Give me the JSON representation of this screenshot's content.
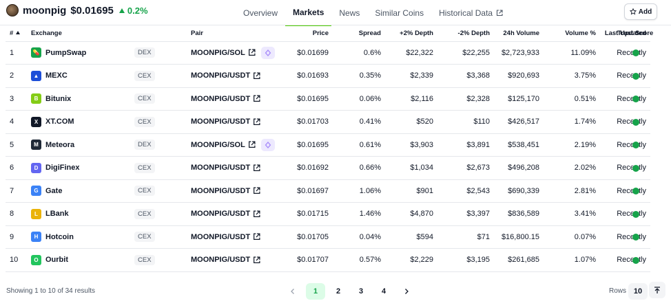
{
  "coin": {
    "name": "moonpig",
    "price": "$0.01695",
    "change": "0.2%",
    "logo_icon": "moonpig-avatar-icon"
  },
  "tabs": [
    {
      "label": "Overview",
      "active": false
    },
    {
      "label": "Markets",
      "active": true
    },
    {
      "label": "News",
      "active": false
    },
    {
      "label": "Similar Coins",
      "active": false
    },
    {
      "label": "Historical Data",
      "active": false,
      "external": true
    }
  ],
  "add_button": {
    "label": "Add",
    "icon": "star-icon"
  },
  "table": {
    "headers": {
      "rank": "#",
      "exchange": "Exchange",
      "pair": "Pair",
      "price": "Price",
      "spread": "Spread",
      "plus2": "+2% Depth",
      "minus2": "-2% Depth",
      "volume": "24h Volume",
      "volume_pct": "Volume %",
      "updated": "Last Updated",
      "trust": "Trust Score"
    },
    "rows": [
      {
        "rank": "1",
        "exchange": "PumpSwap",
        "type": "DEX",
        "pair": "MOONPIG/SOL",
        "price": "$0.01699",
        "spread": "0.6%",
        "plus2": "$22,322",
        "minus2": "$22,255",
        "volume": "$2,723,933",
        "volume_pct": "11.09%",
        "updated": "Recently",
        "logo_color": "#16a34a",
        "logo_char": "💊"
      },
      {
        "rank": "2",
        "exchange": "MEXC",
        "type": "CEX",
        "pair": "MOONPIG/USDT",
        "price": "$0.01693",
        "spread": "0.35%",
        "plus2": "$2,339",
        "minus2": "$3,368",
        "volume": "$920,693",
        "volume_pct": "3.75%",
        "updated": "Recently",
        "logo_color": "#1d4ed8",
        "logo_char": "▲"
      },
      {
        "rank": "3",
        "exchange": "Bitunix",
        "type": "CEX",
        "pair": "MOONPIG/USDT",
        "price": "$0.01695",
        "spread": "0.06%",
        "plus2": "$2,116",
        "minus2": "$2,328",
        "volume": "$125,170",
        "volume_pct": "0.51%",
        "updated": "Recently",
        "logo_color": "#84cc16",
        "logo_char": "B"
      },
      {
        "rank": "4",
        "exchange": "XT.COM",
        "type": "CEX",
        "pair": "MOONPIG/USDT",
        "price": "$0.01703",
        "spread": "0.41%",
        "plus2": "$520",
        "minus2": "$110",
        "volume": "$426,517",
        "volume_pct": "1.74%",
        "updated": "Recently",
        "logo_color": "#111827",
        "logo_char": "X"
      },
      {
        "rank": "5",
        "exchange": "Meteora",
        "type": "DEX",
        "pair": "MOONPIG/SOL",
        "price": "$0.01695",
        "spread": "0.61%",
        "plus2": "$3,903",
        "minus2": "$3,891",
        "volume": "$538,451",
        "volume_pct": "2.19%",
        "updated": "Recently",
        "logo_color": "#1f2937",
        "logo_char": "M"
      },
      {
        "rank": "6",
        "exchange": "DigiFinex",
        "type": "CEX",
        "pair": "MOONPIG/USDT",
        "price": "$0.01692",
        "spread": "0.66%",
        "plus2": "$1,034",
        "minus2": "$2,673",
        "volume": "$496,208",
        "volume_pct": "2.02%",
        "updated": "Recently",
        "logo_color": "#6366f1",
        "logo_char": "D"
      },
      {
        "rank": "7",
        "exchange": "Gate",
        "type": "CEX",
        "pair": "MOONPIG/USDT",
        "price": "$0.01697",
        "spread": "1.06%",
        "plus2": "$901",
        "minus2": "$2,543",
        "volume": "$690,339",
        "volume_pct": "2.81%",
        "updated": "Recently",
        "logo_color": "#3b82f6",
        "logo_char": "G"
      },
      {
        "rank": "8",
        "exchange": "LBank",
        "type": "CEX",
        "pair": "MOONPIG/USDT",
        "price": "$0.01715",
        "spread": "1.46%",
        "plus2": "$4,870",
        "minus2": "$3,397",
        "volume": "$836,589",
        "volume_pct": "3.41%",
        "updated": "Recently",
        "logo_color": "#eab308",
        "logo_char": "L"
      },
      {
        "rank": "9",
        "exchange": "Hotcoin",
        "type": "CEX",
        "pair": "MOONPIG/USDT",
        "price": "$0.01705",
        "spread": "0.04%",
        "plus2": "$594",
        "minus2": "$71",
        "volume": "$16,800.15",
        "volume_pct": "0.07%",
        "updated": "Recently",
        "logo_color": "#3b82f6",
        "logo_char": "H"
      },
      {
        "rank": "10",
        "exchange": "Ourbit",
        "type": "CEX",
        "pair": "MOONPIG/USDT",
        "price": "$0.01707",
        "spread": "0.57%",
        "plus2": "$2,229",
        "minus2": "$3,195",
        "volume": "$261,685",
        "volume_pct": "1.07%",
        "updated": "Recently",
        "logo_color": "#22c55e",
        "logo_char": "O"
      }
    ]
  },
  "footer": {
    "showing": "Showing 1 to 10 of 34 results",
    "pages": [
      "1",
      "2",
      "3",
      "4"
    ],
    "active_page": "1",
    "rows_label": "Rows",
    "rows_value": "10"
  },
  "colors": {
    "accent": "#16a34a",
    "tab_underline": "#4bcc00",
    "trust_good": "#16a34a"
  }
}
